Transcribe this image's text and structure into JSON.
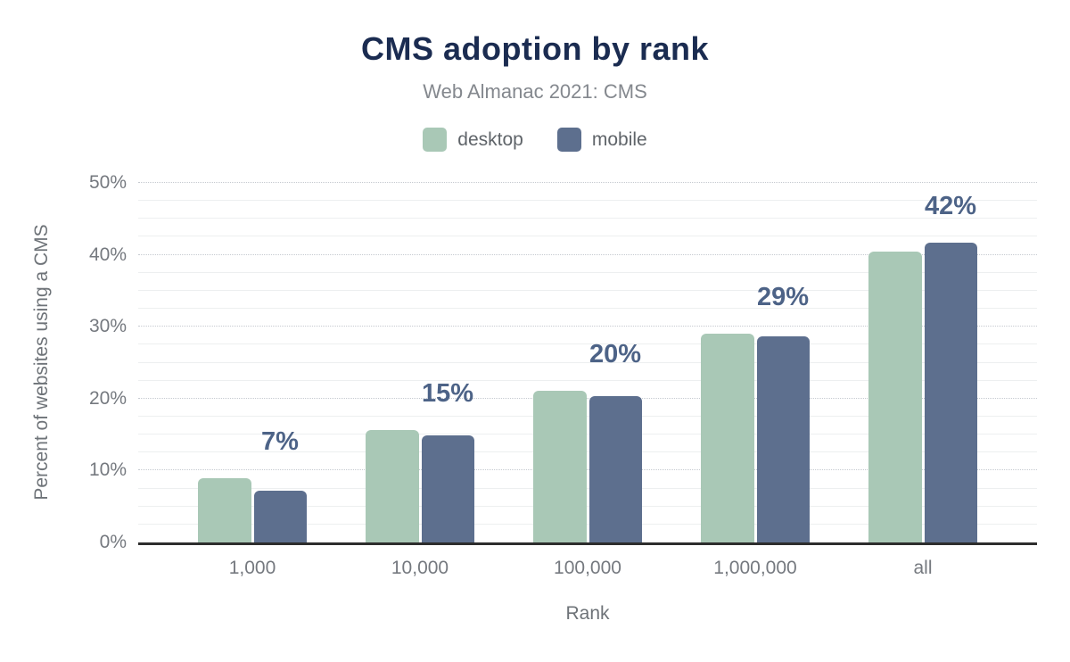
{
  "chart_data": {
    "type": "bar",
    "title": "CMS adoption by rank",
    "subtitle": "Web Almanac 2021: CMS",
    "xlabel": "Rank",
    "ylabel": "Percent of websites using a CMS",
    "categories": [
      "1,000",
      "10,000",
      "100,000",
      "1,000,000",
      "all"
    ],
    "series": [
      {
        "name": "desktop",
        "color": "#a9c8b6",
        "values": [
          8.9,
          15.6,
          21.1,
          29.0,
          40.4
        ]
      },
      {
        "name": "mobile",
        "color": "#5d6f8e",
        "values": [
          7.2,
          14.9,
          20.3,
          28.6,
          41.7
        ]
      }
    ],
    "bar_labels": [
      "7%",
      "15%",
      "20%",
      "29%",
      "42%"
    ],
    "ylim": [
      0,
      50
    ],
    "yticks": [
      "0%",
      "10%",
      "20%",
      "30%",
      "40%",
      "50%"
    ],
    "grid": {
      "major_step": 10,
      "minor_step": 2.5,
      "on": true
    },
    "legend_position": "top",
    "colors": {
      "title": "#1b2c51",
      "subtitle": "#84888e",
      "tick_text": "#75797f",
      "value_label": "#4d6387",
      "axis_line": "#2d2d2d",
      "major_grid": "#c6cad0",
      "minor_grid": "#edeff0",
      "background": "#ffffff"
    }
  }
}
